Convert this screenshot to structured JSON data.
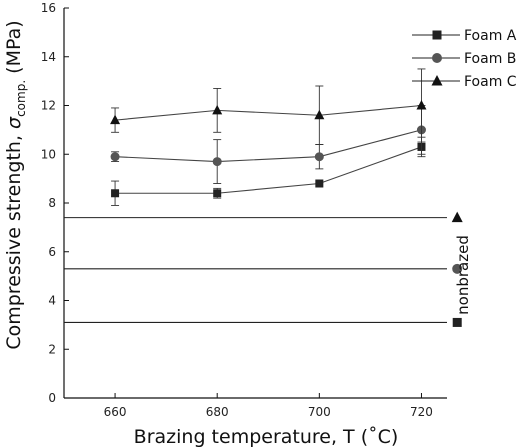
{
  "chart_data": {
    "type": "line",
    "title": "",
    "xlabel": "Brazing temperature, T (˚C)",
    "ylabel_main": "Compressive strength, ",
    "ylabel_sigma": "σ",
    "ylabel_sub": "comp.",
    "ylabel_unit": " (MPa)",
    "x_ticks": [
      "660",
      "680",
      "700",
      "720"
    ],
    "y_ticks": [
      "0",
      "2",
      "4",
      "6",
      "8",
      "10",
      "12",
      "14",
      "16"
    ],
    "xlim": [
      650,
      725
    ],
    "ylim": [
      0,
      16
    ],
    "x": [
      660,
      680,
      700,
      720
    ],
    "series": [
      {
        "name": "Foam A",
        "marker": "square",
        "color": "#222222",
        "values": [
          8.4,
          8.4,
          8.8,
          10.3
        ],
        "err": [
          0.5,
          0.2,
          0.0,
          0.4
        ],
        "nonbrazed": 3.1
      },
      {
        "name": "Foam B",
        "marker": "circle",
        "color": "#555555",
        "values": [
          9.9,
          9.7,
          9.9,
          11.0
        ],
        "err": [
          0.2,
          0.9,
          0.5,
          1.0
        ],
        "nonbrazed": 5.3
      },
      {
        "name": "Foam C",
        "marker": "triangle",
        "color": "#111111",
        "values": [
          11.4,
          11.8,
          11.6,
          12.0
        ],
        "err": [
          0.5,
          0.9,
          1.2,
          1.5
        ],
        "nonbrazed": 7.4
      }
    ],
    "annotation": "nonbrazed",
    "legend_position": "top-right",
    "grid": false
  }
}
